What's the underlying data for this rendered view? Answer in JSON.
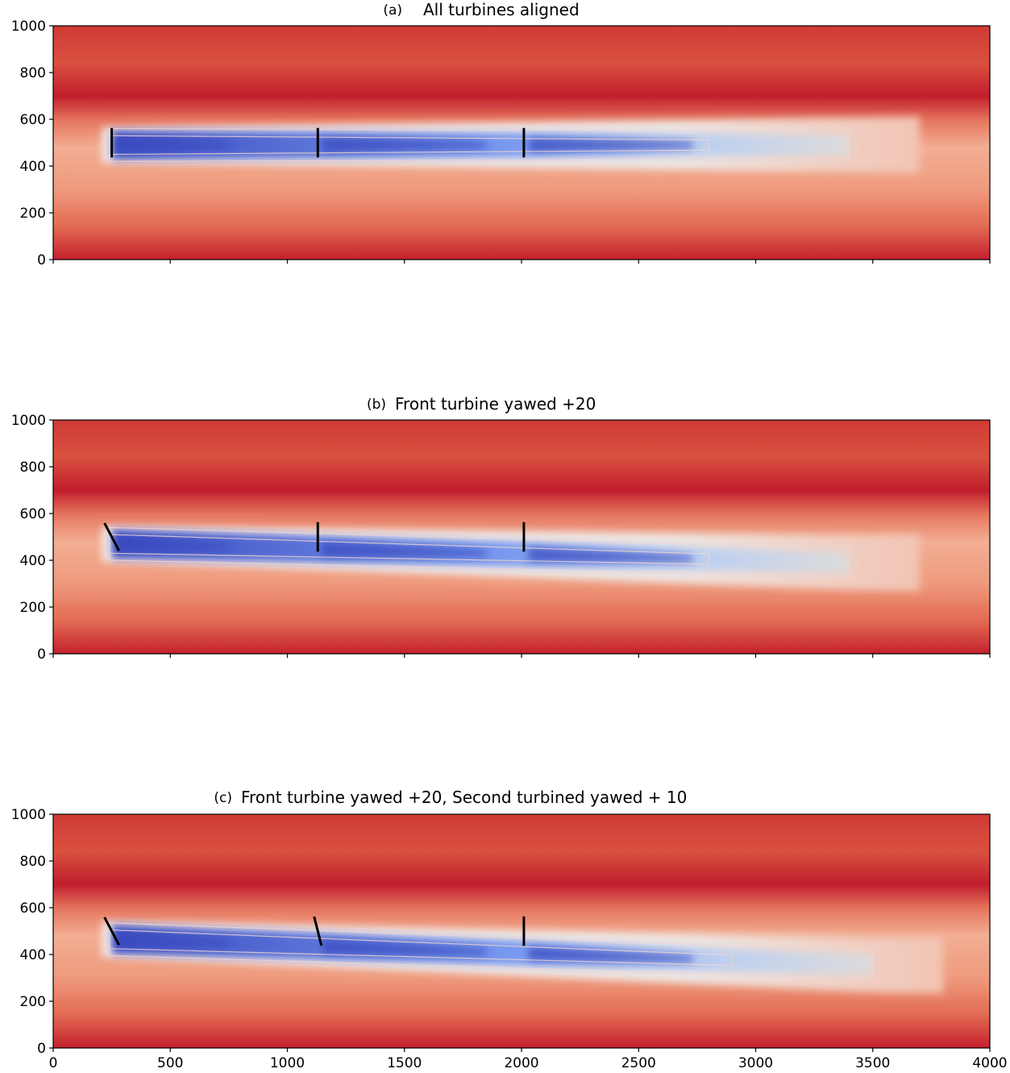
{
  "figure": {
    "type": "heatmap",
    "colormap": "coolwarm",
    "colors": {
      "high": "#b40426",
      "mid": "#dddcdc",
      "low": "#3b4cc0"
    }
  },
  "chart_data": [
    {
      "type": "heatmap",
      "panel_label": "(a)",
      "title": "All turbines aligned",
      "xlim": [
        0,
        4000
      ],
      "ylim": [
        0,
        1000
      ],
      "x_ticks": [
        0,
        500,
        1000,
        1500,
        2000,
        2500,
        3000,
        3500,
        4000
      ],
      "y_ticks": [
        0,
        200,
        400,
        600,
        800,
        1000
      ],
      "show_x_tick_labels": false,
      "wake_center_y": 490,
      "wake_end_x": 3400,
      "wake_deflection_y": 0,
      "turbines": [
        {
          "x": 250,
          "y": 500,
          "yaw_deg": 0
        },
        {
          "x": 1130,
          "y": 500,
          "yaw_deg": 0
        },
        {
          "x": 2010,
          "y": 500,
          "yaw_deg": 0
        }
      ]
    },
    {
      "type": "heatmap",
      "panel_label": "(b)",
      "title": "Front turbine yawed +20",
      "xlim": [
        0,
        4000
      ],
      "ylim": [
        0,
        1000
      ],
      "x_ticks": [
        0,
        500,
        1000,
        1500,
        2000,
        2500,
        3000,
        3500,
        4000
      ],
      "y_ticks": [
        0,
        200,
        400,
        600,
        800,
        1000
      ],
      "show_x_tick_labels": false,
      "wake_center_y": 470,
      "wake_end_x": 3400,
      "wake_deflection_y": -80,
      "turbines": [
        {
          "x": 250,
          "y": 500,
          "yaw_deg": 20
        },
        {
          "x": 1130,
          "y": 500,
          "yaw_deg": 0
        },
        {
          "x": 2010,
          "y": 500,
          "yaw_deg": 0
        }
      ]
    },
    {
      "type": "heatmap",
      "panel_label": "(c)",
      "title": "Front turbine yawed +20, Second turbined yawed + 10",
      "xlim": [
        0,
        4000
      ],
      "ylim": [
        0,
        1000
      ],
      "x_ticks": [
        0,
        500,
        1000,
        1500,
        2000,
        2500,
        3000,
        3500,
        4000
      ],
      "y_ticks": [
        0,
        200,
        400,
        600,
        800,
        1000
      ],
      "show_x_tick_labels": true,
      "wake_center_y": 465,
      "wake_end_x": 3500,
      "wake_deflection_y": -110,
      "turbines": [
        {
          "x": 250,
          "y": 500,
          "yaw_deg": 20
        },
        {
          "x": 1130,
          "y": 500,
          "yaw_deg": 10
        },
        {
          "x": 2010,
          "y": 500,
          "yaw_deg": 0
        }
      ]
    }
  ]
}
